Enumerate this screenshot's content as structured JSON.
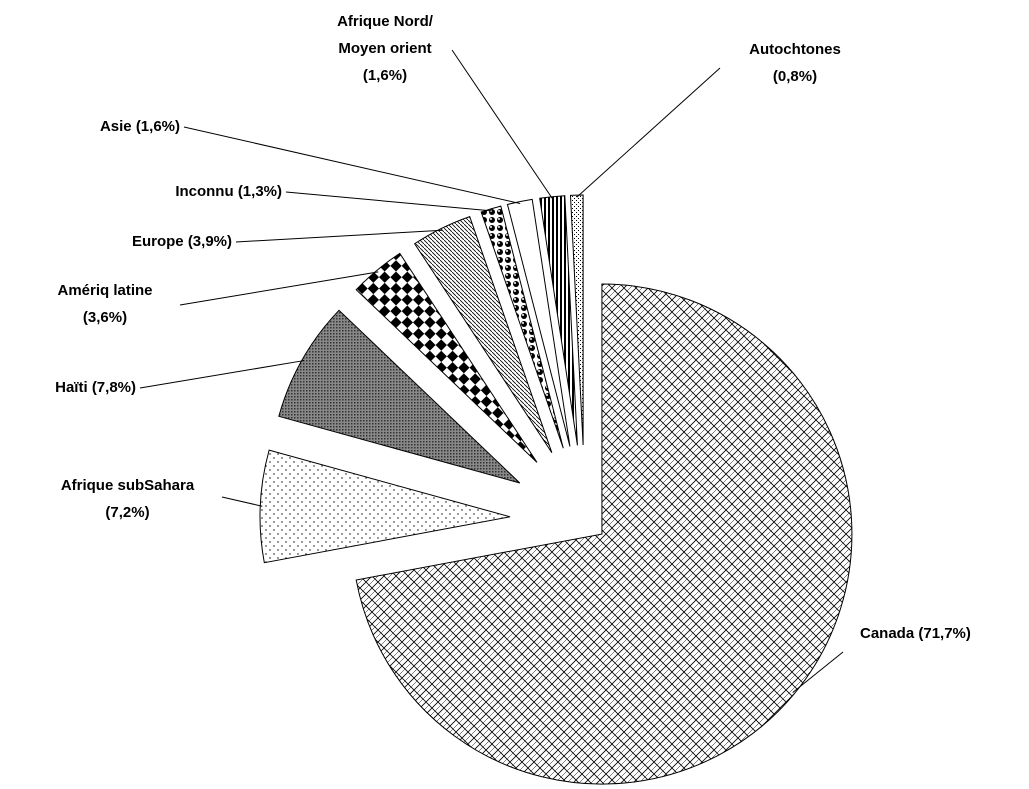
{
  "chart_data": {
    "type": "pie",
    "categories": [
      "Canada",
      "Afrique subSahara",
      "Haïti",
      "Amériq latine",
      "Europe",
      "Inconnu",
      "Asie",
      "Afrique Nord/ Moyen orient",
      "Autochtones"
    ],
    "values": [
      71.7,
      7.2,
      7.8,
      3.6,
      3.9,
      1.3,
      1.6,
      1.6,
      0.8
    ],
    "value_labels": [
      "(71,7%)",
      "(7,2%)",
      "(7,8%)",
      "(3,6%)",
      "(3,9%)",
      "(1,3%)",
      "(1,6%)",
      "(1,6%)",
      "(0,8%)"
    ]
  }
}
